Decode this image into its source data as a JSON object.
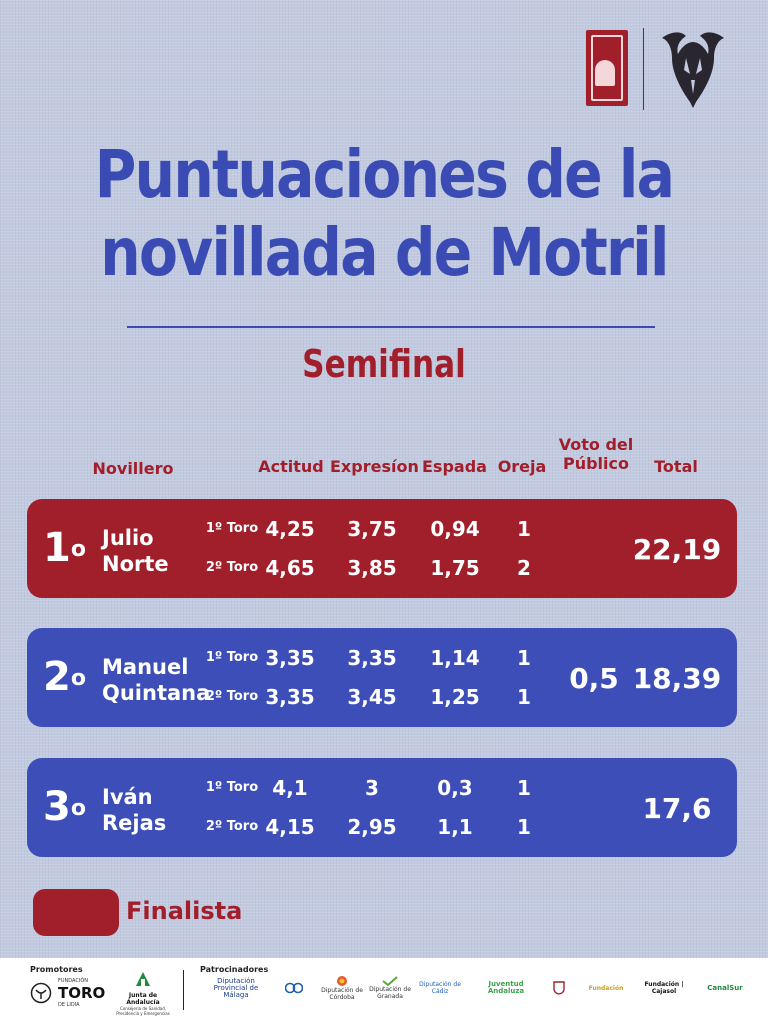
{
  "title_line1": "Puntuaciones de la",
  "title_line2": "novillada de Motril",
  "subtitle": "Semifinal",
  "headers": {
    "novillero": "Novillero",
    "actitud": "Actitud",
    "expresion": "Expresíon",
    "espada": "Espada",
    "oreja": "Oreja",
    "voto_line1": "Voto del",
    "voto_line2": "Público",
    "total": "Total"
  },
  "rows": [
    {
      "pos": "1",
      "sup": "o",
      "name1": "Julio",
      "name2": "Norte",
      "toro1": "1º Toro",
      "toro2": "2º Toro",
      "t1": {
        "actitud": "4,25",
        "expresion": "3,75",
        "espada": "0,94",
        "oreja": "1"
      },
      "t2": {
        "actitud": "4,65",
        "expresion": "3,85",
        "espada": "1,75",
        "oreja": "2"
      },
      "voto": "",
      "total": "22,19",
      "color": "#a11e2b"
    },
    {
      "pos": "2",
      "sup": "o",
      "name1": "Manuel",
      "name2": "Quintana",
      "toro1": "1º Toro",
      "toro2": "2º Toro",
      "t1": {
        "actitud": "3,35",
        "expresion": "3,35",
        "espada": "1,14",
        "oreja": "1"
      },
      "t2": {
        "actitud": "3,35",
        "expresion": "3,45",
        "espada": "1,25",
        "oreja": "1"
      },
      "voto": "0,5",
      "total": "18,39",
      "color": "#3d4eb8"
    },
    {
      "pos": "3",
      "sup": "o",
      "name1": "Iván",
      "name2": "Rejas",
      "toro1": "1º Toro",
      "toro2": "2º Toro",
      "t1": {
        "actitud": "4,1",
        "expresion": "3",
        "espada": "0,3",
        "oreja": "1"
      },
      "t2": {
        "actitud": "4,15",
        "expresion": "2,95",
        "espada": "1,1",
        "oreja": "1"
      },
      "voto": "",
      "total": "17,6",
      "color": "#3d4eb8"
    }
  ],
  "legend": "Finalista",
  "footer": {
    "promotores": "Promotores",
    "patrocinadores": "Patrocinadores",
    "toro": "TORO",
    "fundacion": "FUNDACIÓN",
    "de_lidia": "DE LIDIA",
    "junta": "Junta de Andalucía",
    "junta_sub": "Consejería de Sanidad, Presidencia y Emergencias",
    "sponsors": [
      "Diputación Provincial de Málaga",
      "",
      "Diputación de Córdoba",
      "Diputación de Granada",
      "Diputación de Cádiz",
      "Juventud Andaluza",
      "",
      "Fundación",
      "Fundación | Cajasol",
      "CanalSur"
    ]
  }
}
